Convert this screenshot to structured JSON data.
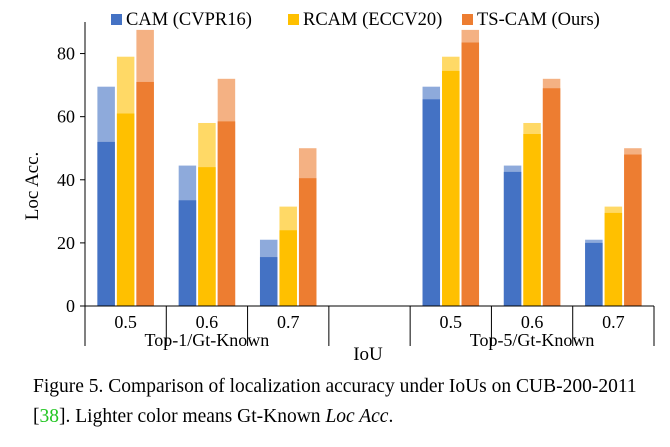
{
  "chart_data": {
    "type": "bar",
    "ylabel": "Loc Acc.",
    "xlabel": "IoU",
    "ylim": [
      0,
      90
    ],
    "yticks": [
      0,
      20,
      40,
      60,
      80
    ],
    "grid": false,
    "legend_position": "top",
    "groups": [
      {
        "label": "Top-1/Gt-Known",
        "categories": [
          "0.5",
          "0.6",
          "0.7"
        ]
      },
      {
        "label": "Top-5/Gt-Known",
        "categories": [
          "0.5",
          "0.6",
          "0.7"
        ]
      }
    ],
    "series": [
      {
        "name": "CAM (CVPR16)",
        "color": "#4472c4",
        "light_color": "#8eaadb",
        "values": [
          52,
          33.5,
          15.5,
          65.5,
          42.5,
          20
        ],
        "gt_known_values": [
          69.5,
          44.5,
          21,
          69.5,
          44.5,
          21
        ]
      },
      {
        "name": "RCAM (ECCV20)",
        "color": "#ffc000",
        "light_color": "#ffd966",
        "values": [
          61,
          44,
          24,
          74.5,
          54.5,
          29.5
        ],
        "gt_known_values": [
          79,
          58,
          31.5,
          79,
          58,
          31.5
        ]
      },
      {
        "name": "TS-CAM (Ours)",
        "color": "#ed7d31",
        "light_color": "#f4b183",
        "values": [
          71,
          58.5,
          40.5,
          83.5,
          69,
          48
        ],
        "gt_known_values": [
          87.5,
          72,
          50,
          87.5,
          72,
          50
        ]
      }
    ]
  },
  "caption": {
    "prefix": "Figure 5. Comparison of localization accuracy under IoUs on CUB-200-2011 [",
    "ref": "38",
    "middle": "]. Lighter color means Gt-Known ",
    "italic": "Loc Acc",
    "suffix": "."
  }
}
